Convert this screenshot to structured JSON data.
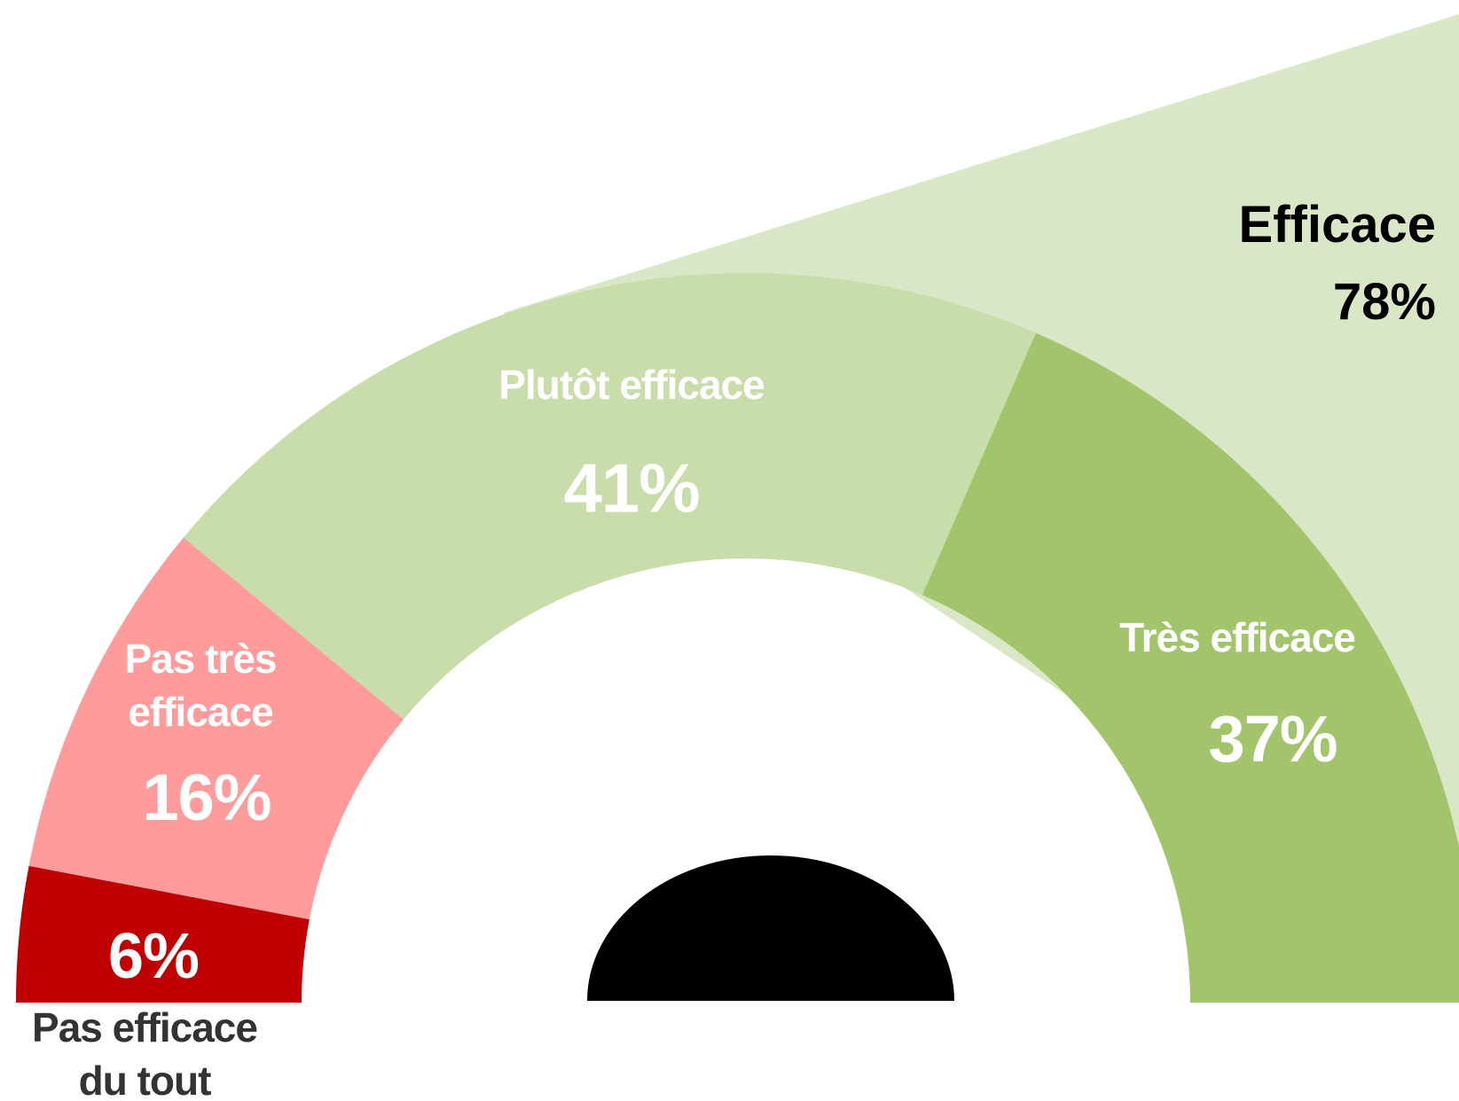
{
  "chart_data": {
    "type": "gauge",
    "categories": [
      "Pas efficace du tout",
      "Pas très efficace",
      "Plutôt efficace",
      "Très efficace"
    ],
    "values": [
      6,
      16,
      41,
      37
    ],
    "value_labels": [
      "6%",
      "16%",
      "41%",
      "37%"
    ],
    "colors": [
      "#c00000",
      "#ff9b9b",
      "#c9ddaa",
      "#a2c46b"
    ],
    "annotation": {
      "text": "Efficace",
      "value": 78,
      "value_label": "78%",
      "color": "#d9e7c6"
    }
  }
}
